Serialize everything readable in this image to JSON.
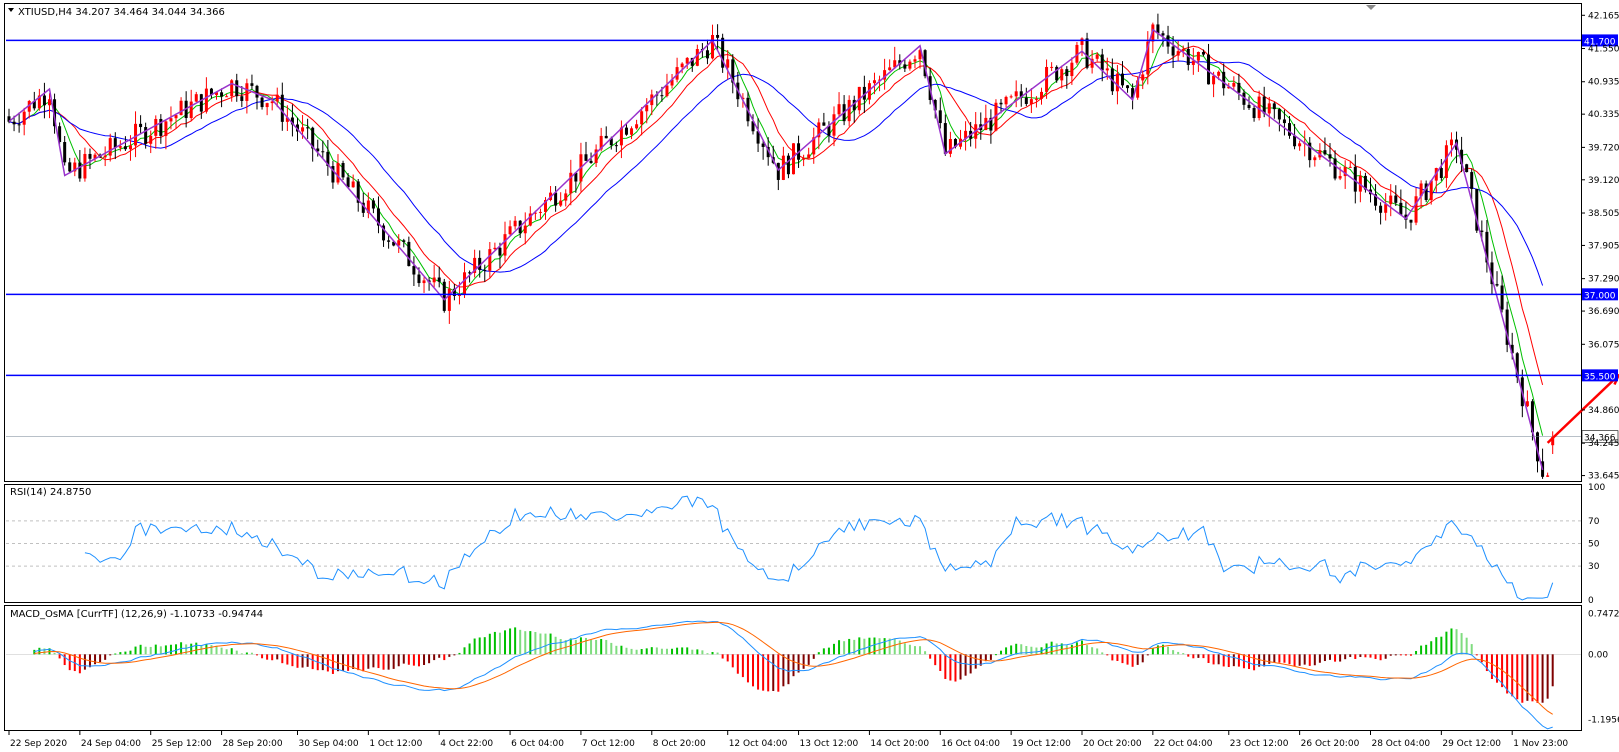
{
  "chart_data": [
    {
      "type": "candlestick",
      "symbol_header": "XTIUSD,H4  34.207 34.464 34.044 34.366",
      "ohlc_last": {
        "open": 34.207,
        "high": 34.464,
        "low": 34.044,
        "close": 34.366
      },
      "y_ticks": [
        "42.165",
        "41.550",
        "40.935",
        "40.335",
        "39.720",
        "39.120",
        "38.505",
        "37.905",
        "37.290",
        "36.690",
        "36.075",
        "34.860",
        "34.245",
        "33.645"
      ],
      "ylim": [
        33.6,
        42.3
      ],
      "x_ticks": [
        "22 Sep 2020",
        "24 Sep 04:00",
        "25 Sep 12:00",
        "28 Sep 20:00",
        "30 Sep 04:00",
        "1 Oct 12:00",
        "4 Oct 22:00",
        "6 Oct 04:00",
        "7 Oct 12:00",
        "8 Oct 20:00",
        "12 Oct 04:00",
        "13 Oct 12:00",
        "14 Oct 20:00",
        "16 Oct 04:00",
        "19 Oct 12:00",
        "20 Oct 20:00",
        "22 Oct 04:00",
        "23 Oct 12:00",
        "26 Oct 20:00",
        "28 Oct 04:00",
        "29 Oct 12:00",
        "1 Nov 23:00"
      ],
      "levels": [
        {
          "value": 41.7,
          "label": "41.700",
          "color": "#0000ff"
        },
        {
          "value": 37.0,
          "label": "37.000",
          "color": "#0000ff"
        },
        {
          "value": 35.5,
          "label": "35.500",
          "color": "#0000ff"
        }
      ],
      "current_price": {
        "value": 34.366,
        "label": "34.366"
      },
      "moving_averages": [
        {
          "color": "#00c000"
        },
        {
          "color": "#ff0000"
        },
        {
          "color": "#0000ff"
        }
      ],
      "zigzag": {
        "color": "#9933cc",
        "points": [
          [
            0,
            40.2
          ],
          [
            8,
            40.8
          ],
          [
            11,
            39.2
          ],
          [
            44,
            40.9
          ],
          [
            52,
            40.6
          ],
          [
            86,
            36.9
          ],
          [
            139,
            41.7
          ],
          [
            152,
            39.3
          ],
          [
            180,
            41.6
          ],
          [
            185,
            39.6
          ],
          [
            212,
            41.5
          ],
          [
            222,
            40.6
          ],
          [
            226,
            41.9
          ],
          [
            276,
            38.4
          ],
          [
            286,
            39.8
          ],
          [
            303,
            33.75
          ]
        ]
      },
      "forecast_arrows": {
        "color": "#ff0000",
        "points": [
          [
            304,
            34.25
          ],
          [
            318,
            35.5
          ],
          [
            343,
            33.6
          ]
        ]
      },
      "bull_color": "#ff0000",
      "bear_color": "#000000"
    },
    {
      "type": "line",
      "title": "RSI(14) 24.8750",
      "y_ticks": [
        "100",
        "70",
        "50",
        "30",
        "0"
      ],
      "ylim": [
        0,
        100
      ],
      "levels": [
        70,
        50,
        30
      ],
      "series": [
        {
          "color": "#1e90ff"
        }
      ]
    },
    {
      "type": "bar",
      "title": "MACD_OsMA [CurrTF] (12,26,9) -1.10733 -0.94744",
      "y_ticks": [
        "0.74724",
        "0.00",
        "-1.19565"
      ],
      "ylim": [
        -1.35,
        0.85
      ],
      "colors": {
        "up_strong": "#00c000",
        "up_weak": "#7fdc7f",
        "down_strong": "#ff0000",
        "down_weak": "#7f0000",
        "macd": "#1e90ff",
        "signal": "#ff6600"
      }
    }
  ]
}
